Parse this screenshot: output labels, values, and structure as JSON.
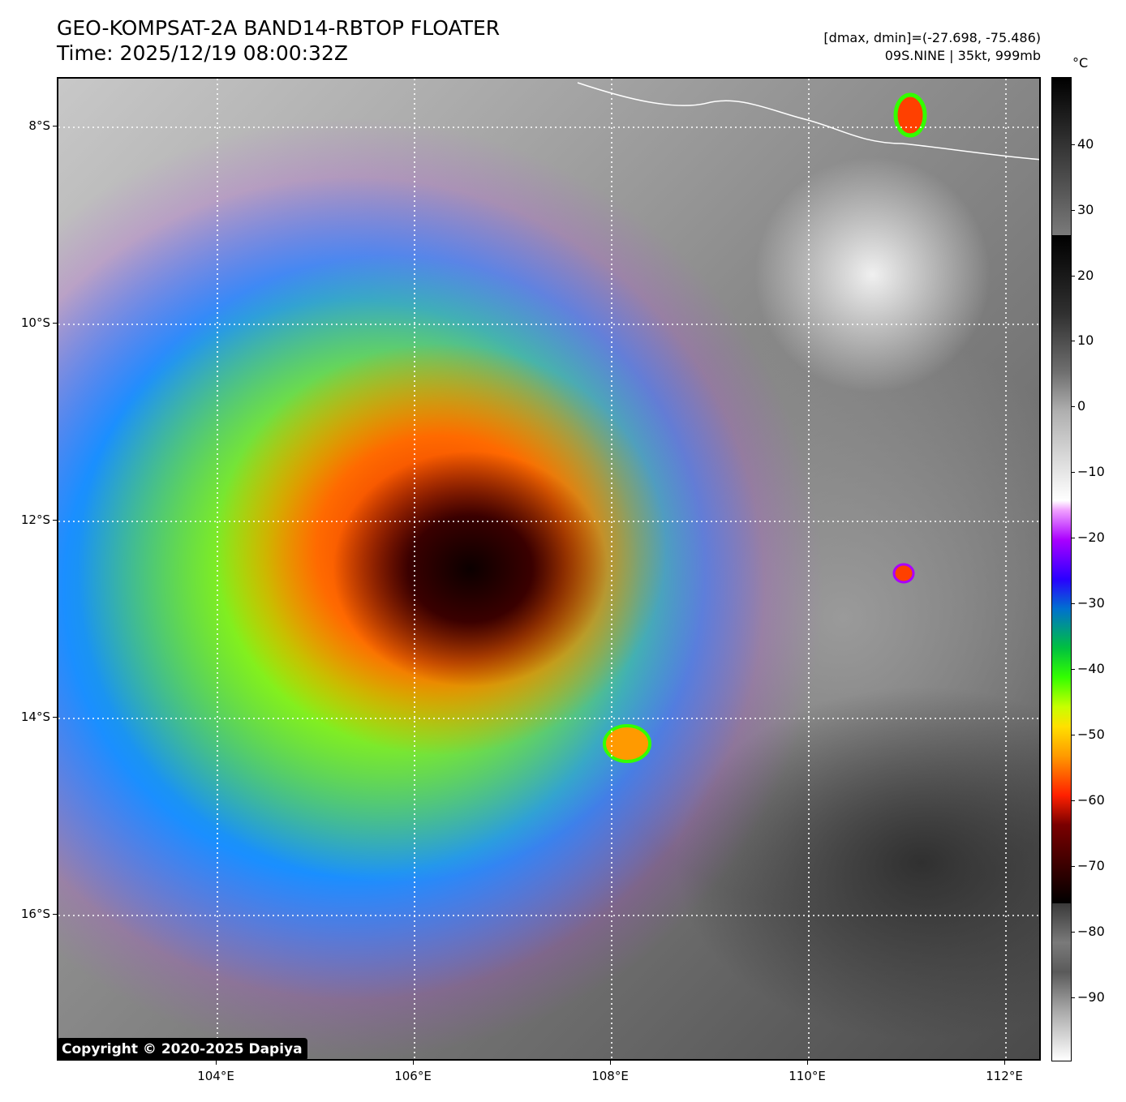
{
  "header": {
    "title_line1": "GEO-KOMPSAT-2A BAND14-RBTOP FLOATER",
    "title_line2": "Time: 2025/12/19 08:00:32Z",
    "stats": "[dmax, dmin]=(-27.698, -75.486)",
    "storm": "09S.NINE | 35kt, 999mb"
  },
  "map": {
    "lat_labels": [
      "8°S",
      "10°S",
      "12°S",
      "14°S",
      "16°S"
    ],
    "lon_labels": [
      "104°E",
      "106°E",
      "108°E",
      "110°E",
      "112°E"
    ]
  },
  "colorbar": {
    "unit": "°C",
    "labels": [
      "40",
      "30",
      "20",
      "10",
      "0",
      "−10",
      "−20",
      "−30",
      "−40",
      "−50",
      "−60",
      "−70",
      "−80",
      "−90"
    ],
    "palette": {
      "black": "#000000",
      "white": "#ffffff",
      "purple": "#aa00ff",
      "blue": "#2a00ff",
      "green": "#33ff00",
      "yellow": "#ffe000",
      "orange": "#ff9a00",
      "red": "#ff2000"
    }
  },
  "footer": {
    "copyright": "Copyright © 2020-2025 Dapiya"
  }
}
